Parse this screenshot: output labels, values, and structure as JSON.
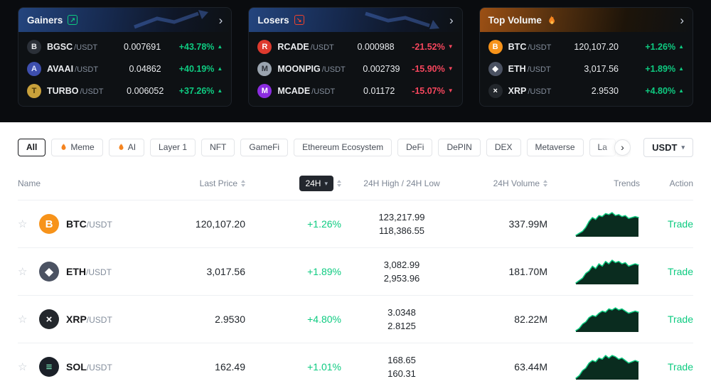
{
  "colors": {
    "green": "#0ECB81",
    "red": "#F6465D",
    "spark_line": "#0ECB81",
    "spark_fill": "#0A2C1F"
  },
  "icons": {
    "chevron_right": "›",
    "caret_down": "▾",
    "star_outline": "☆",
    "arrow_up_right": "↗",
    "arrow_down_right": "↘"
  },
  "coin_colors": {
    "BGSC": {
      "bg": "#2b3038",
      "fg": "#e8eaed",
      "glyph": "B"
    },
    "AVAAI": {
      "bg": "#3e4fae",
      "fg": "#dfe6ff",
      "glyph": "A"
    },
    "TURBO": {
      "bg": "#c9a13b",
      "fg": "#4d3a0a",
      "glyph": "T"
    },
    "RCADE": {
      "bg": "#de3a2e",
      "fg": "#ffffff",
      "glyph": "R"
    },
    "MOONPIG": {
      "bg": "#9aa4af",
      "fg": "#2d3138",
      "glyph": "M"
    },
    "MCADE": {
      "bg": "#8b2ce0",
      "fg": "#ffffff",
      "glyph": "M"
    },
    "BTC": {
      "bg": "#F7931A",
      "fg": "#ffffff",
      "glyph": "B"
    },
    "ETH": {
      "bg": "#4b5262",
      "fg": "#ffffff",
      "glyph": "◆"
    },
    "XRP": {
      "bg": "#23272c",
      "fg": "#ffffff",
      "glyph": "×"
    },
    "SOL": {
      "bg": "#1b2028",
      "fg": "#7df2c0",
      "glyph": "≡"
    }
  },
  "cards": [
    {
      "title": "Gainers",
      "rows": [
        {
          "coin": "BGSC",
          "symbol": "BGSC",
          "quote": "/USDT",
          "price": "0.007691",
          "change": "+43.78%",
          "arrow": "▲"
        },
        {
          "coin": "AVAAI",
          "symbol": "AVAAI",
          "quote": "/USDT",
          "price": "0.04862",
          "change": "+40.19%",
          "arrow": "▲"
        },
        {
          "coin": "TURBO",
          "symbol": "TURBO",
          "quote": "/USDT",
          "price": "0.006052",
          "change": "+37.26%",
          "arrow": "▲"
        }
      ]
    },
    {
      "title": "Losers",
      "rows": [
        {
          "coin": "RCADE",
          "symbol": "RCADE",
          "quote": "/USDT",
          "price": "0.000988",
          "change": "-21.52%",
          "arrow": "▼"
        },
        {
          "coin": "MOONPIG",
          "symbol": "MOONPIG",
          "quote": "/USDT",
          "price": "0.002739",
          "change": "-15.90%",
          "arrow": "▼"
        },
        {
          "coin": "MCADE",
          "symbol": "MCADE",
          "quote": "/USDT",
          "price": "0.01172",
          "change": "-15.07%",
          "arrow": "▼"
        }
      ]
    },
    {
      "title": "Top Volume",
      "rows": [
        {
          "coin": "BTC",
          "symbol": "BTC",
          "quote": "/USDT",
          "price": "120,107.20",
          "change": "+1.26%",
          "arrow": "▲"
        },
        {
          "coin": "ETH",
          "symbol": "ETH",
          "quote": "/USDT",
          "price": "3,017.56",
          "change": "+1.89%",
          "arrow": "▲"
        },
        {
          "coin": "XRP",
          "symbol": "XRP",
          "quote": "/USDT",
          "price": "2.9530",
          "change": "+4.80%",
          "arrow": "▲"
        }
      ]
    }
  ],
  "filters": {
    "chips": [
      {
        "label": "All"
      },
      {
        "label": "Meme"
      },
      {
        "label": "AI"
      },
      {
        "label": "Layer 1"
      },
      {
        "label": "NFT"
      },
      {
        "label": "GameFi"
      },
      {
        "label": "Ethereum Ecosystem"
      },
      {
        "label": "DeFi"
      },
      {
        "label": "DePIN"
      },
      {
        "label": "DEX"
      },
      {
        "label": "Metaverse"
      },
      {
        "label": "La"
      }
    ],
    "quote": "USDT"
  },
  "table": {
    "headers": {
      "name": "Name",
      "last_price": "Last Price",
      "change_period": "24H",
      "high_low": "24H High / 24H Low",
      "volume": "24H Volume",
      "trends": "Trends",
      "action": "Action"
    },
    "trade_label": "Trade",
    "rows": [
      {
        "coin": "BTC",
        "symbol": "BTC",
        "quote": "/USDT",
        "price": "120,107.20",
        "change": "+1.26%",
        "high": "123,217.99",
        "low": "118,386.55",
        "volume": "337.99M",
        "spark": [
          3,
          4,
          5,
          7,
          10,
          12,
          11,
          13,
          12.5,
          14,
          13.5,
          14.5,
          13,
          13.5,
          12.5,
          13,
          11.5,
          12,
          12.5,
          12
        ]
      },
      {
        "coin": "ETH",
        "symbol": "ETH",
        "quote": "/USDT",
        "price": "3,017.56",
        "change": "+1.89%",
        "high": "3,082.99",
        "low": "2,953.96",
        "volume": "181.70M",
        "spark": [
          4,
          5,
          6,
          8,
          9,
          11,
          10,
          12,
          11,
          13,
          12,
          13.5,
          12.5,
          13,
          12,
          12.5,
          11,
          11.5,
          12,
          11.5
        ]
      },
      {
        "coin": "XRP",
        "symbol": "XRP",
        "quote": "/USDT",
        "price": "2.9530",
        "change": "+4.80%",
        "high": "3.0348",
        "low": "2.8125",
        "volume": "82.22M",
        "spark": [
          3,
          4,
          6,
          7,
          9,
          10,
          9.5,
          11,
          12,
          11.5,
          13,
          12.5,
          13.5,
          12.5,
          13,
          12,
          11,
          11.5,
          12,
          11.5
        ]
      },
      {
        "coin": "SOL",
        "symbol": "SOL",
        "quote": "/USDT",
        "price": "162.49",
        "change": "+1.01%",
        "high": "168.65",
        "low": "160.31",
        "volume": "63.44M",
        "spark": [
          4,
          5,
          7,
          8,
          10,
          11,
          10.5,
          12,
          11.5,
          13,
          12,
          13,
          12.5,
          11.5,
          12,
          11,
          10,
          10.5,
          11,
          10.5
        ]
      }
    ]
  }
}
